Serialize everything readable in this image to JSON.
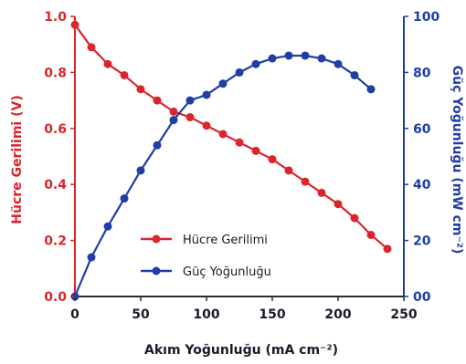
{
  "chart_data": {
    "type": "line",
    "xlabel": "Akım Yoğunluğu (mA cm⁻²)",
    "ylabel_left": "Hücre Gerilimi (V)",
    "ylabel_right": "Güç Yoğunluğu (mW cm⁻²)",
    "xlim": [
      0,
      250
    ],
    "ylim_left": [
      0,
      1.0
    ],
    "ylim_right": [
      0,
      100
    ],
    "x_ticks": [
      "0",
      "50",
      "100",
      "150",
      "200",
      "250"
    ],
    "y_left_ticks": [
      "0.0",
      "0.2",
      "0.4",
      "0.6",
      "0.8",
      "1.0"
    ],
    "y_right_ticks": [
      "00",
      "20",
      "40",
      "60",
      "80",
      "100"
    ],
    "grid": false,
    "legend_position": "center-bottom",
    "series": [
      {
        "name": "Hücre Gerilimi",
        "axis": "left",
        "color": "#d9262b",
        "x": [
          0,
          12.5,
          25,
          37.5,
          50,
          62.5,
          75,
          87.5,
          100,
          112.5,
          125,
          137.5,
          150,
          162.5,
          175,
          187.5,
          200,
          212.5,
          225,
          237.5
        ],
        "values": [
          0.97,
          0.89,
          0.83,
          0.79,
          0.74,
          0.7,
          0.66,
          0.64,
          0.61,
          0.58,
          0.55,
          0.52,
          0.49,
          0.45,
          0.41,
          0.37,
          0.33,
          0.28,
          0.22,
          0.17
        ]
      },
      {
        "name": "Güç Yoğunluğu",
        "axis": "right",
        "color": "#1f3ea6",
        "x": [
          0,
          12.5,
          25,
          37.5,
          50,
          62.5,
          75,
          87.5,
          100,
          112.5,
          125,
          137.5,
          150,
          162.5,
          175,
          187.5,
          200,
          212.5,
          225
        ],
        "values": [
          0,
          14,
          25,
          35,
          45,
          54,
          63,
          70,
          72,
          76,
          80,
          83,
          85,
          86,
          86,
          85,
          83,
          79,
          74
        ]
      }
    ]
  }
}
